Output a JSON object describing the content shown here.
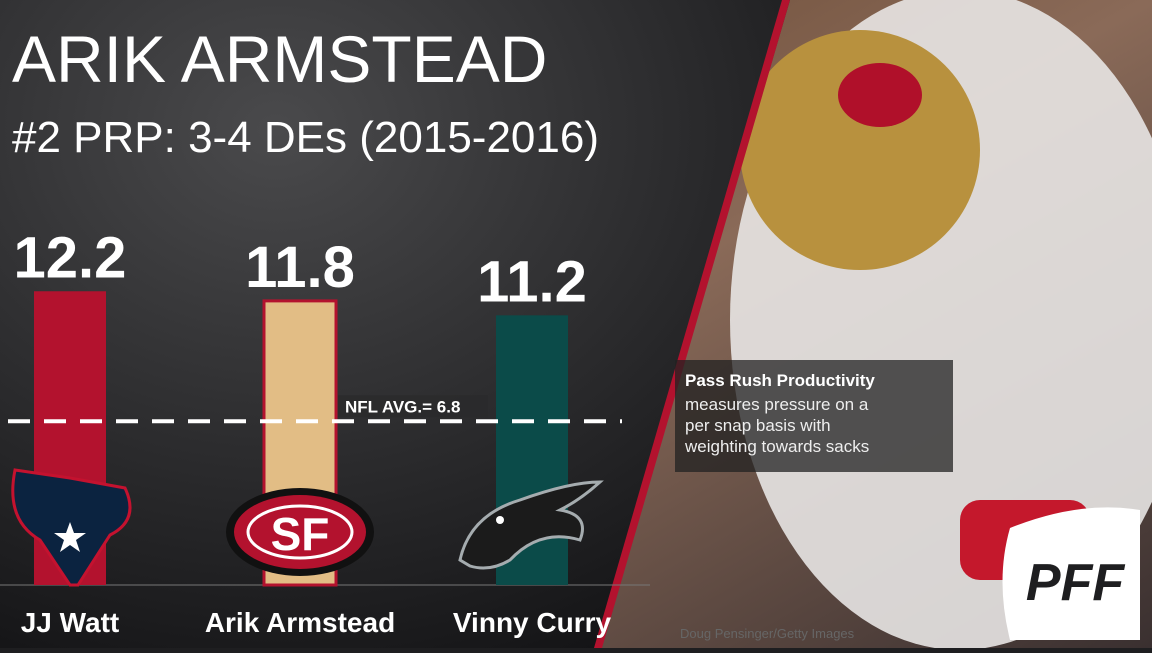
{
  "chart_data": {
    "type": "bar",
    "title": "ARIK ARMSTEAD",
    "subtitle": "#2 PRP: 3-4 DEs (2015-2016)",
    "categories": [
      "JJ Watt",
      "Arik Armstead",
      "Vinny Curry"
    ],
    "values": [
      12.2,
      11.8,
      11.2
    ],
    "colors": [
      "#b3122e",
      "#e2bd85",
      "#0b4b49"
    ],
    "ylim": [
      0,
      13
    ],
    "reference_line": {
      "value": 6.8,
      "label": "NFL AVG.= 6.8"
    },
    "note": {
      "heading": "Pass Rush Productivity",
      "text": "measures pressure on a per snap basis with weighting towards sacks"
    },
    "credit": "Doug Pensinger/Getty Images",
    "logo": "PFF"
  }
}
